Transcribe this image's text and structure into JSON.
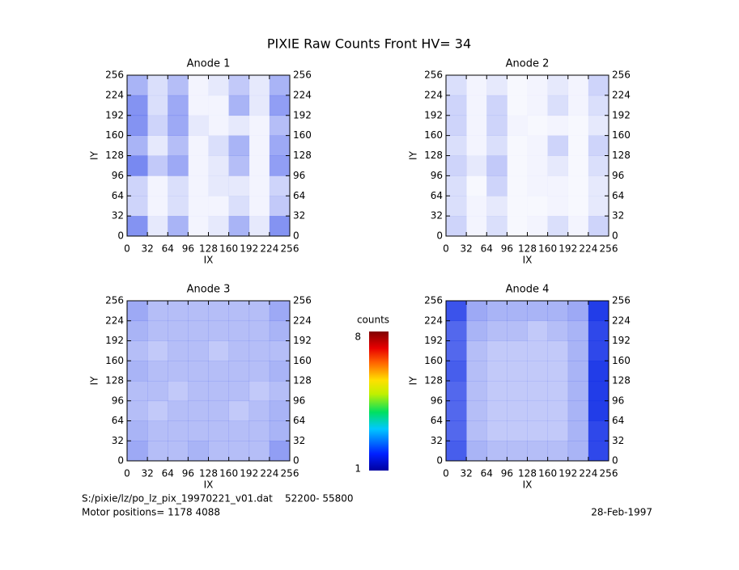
{
  "title": "PIXIE Raw Counts Front HV= 34",
  "colorbar": {
    "label": "counts",
    "clim": [
      1,
      8
    ]
  },
  "footer": {
    "file": "S:/pixie/lz/po_lz_pix_19970221_v01.dat    52200- 55800",
    "motor": "Motor positions= 1178 4088",
    "date": "28-Feb-1997"
  },
  "chart_data": [
    {
      "type": "heatmap",
      "title": "Anode 1",
      "xlabel": "IX",
      "ylabel": "IY",
      "color": "#0a28e6",
      "xlim": [
        0,
        256
      ],
      "ylim": [
        0,
        256
      ],
      "xticks": [
        0,
        32,
        64,
        96,
        128,
        160,
        192,
        224,
        256
      ],
      "yticks": [
        0,
        32,
        64,
        96,
        128,
        160,
        192,
        224,
        256
      ],
      "z": [
        [
          0.5,
          0.1,
          0.35,
          0.05,
          0.1,
          0.35,
          0.1,
          0.5
        ],
        [
          0.2,
          0.05,
          0.15,
          0.05,
          0.05,
          0.15,
          0.05,
          0.25
        ],
        [
          0.2,
          0.05,
          0.15,
          0.05,
          0.1,
          0.1,
          0.05,
          0.2
        ],
        [
          0.55,
          0.25,
          0.4,
          0.05,
          0.1,
          0.3,
          0.05,
          0.45
        ],
        [
          0.35,
          0.1,
          0.3,
          0.05,
          0.15,
          0.35,
          0.05,
          0.4
        ],
        [
          0.5,
          0.2,
          0.4,
          0.1,
          0.05,
          0.1,
          0.05,
          0.3
        ],
        [
          0.5,
          0.15,
          0.4,
          0.05,
          0.05,
          0.35,
          0.1,
          0.45
        ],
        [
          0.35,
          0.15,
          0.3,
          0.05,
          0.1,
          0.25,
          0.1,
          0.35
        ]
      ]
    },
    {
      "type": "heatmap",
      "title": "Anode 2",
      "xlabel": "IX",
      "ylabel": "IY",
      "color": "#0a28e6",
      "xlim": [
        0,
        256
      ],
      "ylim": [
        0,
        256
      ],
      "xticks": [
        0,
        32,
        64,
        96,
        128,
        160,
        192,
        224,
        256
      ],
      "yticks": [
        0,
        32,
        64,
        96,
        128,
        160,
        192,
        224,
        256
      ],
      "z": [
        [
          0.2,
          0.05,
          0.15,
          0.03,
          0.05,
          0.15,
          0.05,
          0.2
        ],
        [
          0.15,
          0.05,
          0.1,
          0.03,
          0.03,
          0.05,
          0.03,
          0.1
        ],
        [
          0.15,
          0.03,
          0.2,
          0.03,
          0.05,
          0.05,
          0.03,
          0.1
        ],
        [
          0.2,
          0.1,
          0.25,
          0.03,
          0.05,
          0.1,
          0.03,
          0.15
        ],
        [
          0.15,
          0.05,
          0.15,
          0.03,
          0.05,
          0.2,
          0.03,
          0.2
        ],
        [
          0.2,
          0.05,
          0.2,
          0.05,
          0.03,
          0.05,
          0.03,
          0.1
        ],
        [
          0.2,
          0.05,
          0.2,
          0.03,
          0.05,
          0.15,
          0.05,
          0.15
        ],
        [
          0.15,
          0.05,
          0.1,
          0.03,
          0.05,
          0.1,
          0.05,
          0.2
        ]
      ]
    },
    {
      "type": "heatmap",
      "title": "Anode 3",
      "xlabel": "IX",
      "ylabel": "IY",
      "color": "#0a28e6",
      "xlim": [
        0,
        256
      ],
      "ylim": [
        0,
        256
      ],
      "xticks": [
        0,
        32,
        64,
        96,
        128,
        160,
        192,
        224,
        256
      ],
      "yticks": [
        0,
        32,
        64,
        96,
        128,
        160,
        192,
        224,
        256
      ],
      "z": [
        [
          0.4,
          0.3,
          0.3,
          0.35,
          0.3,
          0.3,
          0.3,
          0.45
        ],
        [
          0.35,
          0.3,
          0.3,
          0.3,
          0.3,
          0.3,
          0.3,
          0.35
        ],
        [
          0.3,
          0.25,
          0.3,
          0.3,
          0.3,
          0.25,
          0.3,
          0.35
        ],
        [
          0.3,
          0.3,
          0.25,
          0.3,
          0.3,
          0.3,
          0.25,
          0.3
        ],
        [
          0.35,
          0.3,
          0.3,
          0.3,
          0.3,
          0.3,
          0.3,
          0.35
        ],
        [
          0.3,
          0.25,
          0.3,
          0.3,
          0.25,
          0.3,
          0.3,
          0.3
        ],
        [
          0.35,
          0.3,
          0.3,
          0.3,
          0.3,
          0.3,
          0.3,
          0.35
        ],
        [
          0.4,
          0.3,
          0.3,
          0.3,
          0.3,
          0.3,
          0.3,
          0.4
        ]
      ]
    },
    {
      "type": "heatmap",
      "title": "Anode 4",
      "xlabel": "IX",
      "ylabel": "IY",
      "color": "#0a28e6",
      "xlim": [
        0,
        256
      ],
      "ylim": [
        0,
        256
      ],
      "xticks": [
        0,
        32,
        64,
        96,
        128,
        160,
        192,
        224,
        256
      ],
      "yticks": [
        0,
        32,
        64,
        96,
        128,
        160,
        192,
        224,
        256
      ],
      "z": [
        [
          0.75,
          0.35,
          0.3,
          0.3,
          0.3,
          0.3,
          0.35,
          0.85
        ],
        [
          0.7,
          0.3,
          0.25,
          0.25,
          0.25,
          0.25,
          0.35,
          0.85
        ],
        [
          0.7,
          0.3,
          0.25,
          0.25,
          0.25,
          0.25,
          0.35,
          0.9
        ],
        [
          0.7,
          0.3,
          0.25,
          0.25,
          0.25,
          0.25,
          0.35,
          0.9
        ],
        [
          0.75,
          0.3,
          0.25,
          0.25,
          0.25,
          0.25,
          0.35,
          0.9
        ],
        [
          0.7,
          0.3,
          0.25,
          0.25,
          0.25,
          0.25,
          0.35,
          0.85
        ],
        [
          0.7,
          0.35,
          0.3,
          0.3,
          0.25,
          0.3,
          0.35,
          0.85
        ],
        [
          0.8,
          0.4,
          0.35,
          0.35,
          0.35,
          0.35,
          0.4,
          0.9
        ]
      ]
    }
  ]
}
